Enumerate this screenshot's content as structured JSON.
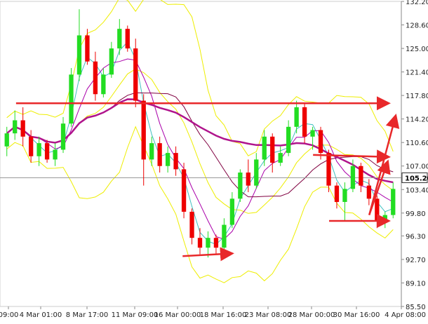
{
  "chart_data": {
    "type": "candlestick",
    "ylim": [
      85.5,
      132.2
    ],
    "y_ticks": [
      "132.20",
      "128.60",
      "125.00",
      "121.40",
      "117.80",
      "114.20",
      "110.60",
      "107.00",
      "103.40",
      "99.80",
      "96.30",
      "92.70",
      "89.10",
      "85.50"
    ],
    "current_price": "105.20",
    "x_ticks": [
      "09:00",
      "4 Mar 01:00",
      "8 Mar 17:00",
      "11 Mar 09:00",
      "16 Mar 00:00",
      "18 Mar 16:00",
      "23 Mar 08:00",
      "28 Mar 00:00",
      "30 Mar 16:00",
      "4 Apr 08:00"
    ],
    "colors": {
      "bull": "#22dd22",
      "bear": "#ee0000",
      "bollinger": "#eeee00",
      "ma_fast": "#40c0c0",
      "ma_mid": "#aa00aa",
      "ma_slow": "#800040",
      "ma_long": "#b0148c",
      "arrow": "#e8282a",
      "price_line": "#999999"
    },
    "candles": [
      [
        110.0,
        113.0,
        108.5,
        112.0
      ],
      [
        112.0,
        115.5,
        111.0,
        114.0
      ],
      [
        114.0,
        116.0,
        110.0,
        111.5
      ],
      [
        111.5,
        112.5,
        107.5,
        108.5
      ],
      [
        108.5,
        111.5,
        107.0,
        110.5
      ],
      [
        110.5,
        111.0,
        107.5,
        108.0
      ],
      [
        108.0,
        110.5,
        107.0,
        109.5
      ],
      [
        109.5,
        114.5,
        109.0,
        113.5
      ],
      [
        113.5,
        122.0,
        113.0,
        121.0
      ],
      [
        121.0,
        131.0,
        120.0,
        127.0
      ],
      [
        127.0,
        128.0,
        122.5,
        123.0
      ],
      [
        123.0,
        124.5,
        117.0,
        118.0
      ],
      [
        118.0,
        122.0,
        117.5,
        121.0
      ],
      [
        121.0,
        126.0,
        120.5,
        125.0
      ],
      [
        125.0,
        129.5,
        124.0,
        128.0
      ],
      [
        128.0,
        128.5,
        124.5,
        125.0
      ],
      [
        125.0,
        126.5,
        116.0,
        117.0
      ],
      [
        117.0,
        118.0,
        104.0,
        108.0
      ],
      [
        108.0,
        111.5,
        107.0,
        110.5
      ],
      [
        110.5,
        111.5,
        106.0,
        107.0
      ],
      [
        107.0,
        110.0,
        106.0,
        109.0
      ],
      [
        109.0,
        110.0,
        105.5,
        106.5
      ],
      [
        106.5,
        107.5,
        99.0,
        100.0
      ],
      [
        100.0,
        100.5,
        95.0,
        96.0
      ],
      [
        96.0,
        97.5,
        93.5,
        94.5
      ],
      [
        94.5,
        97.0,
        93.0,
        96.0
      ],
      [
        96.0,
        96.5,
        93.5,
        94.5
      ],
      [
        94.5,
        99.0,
        94.0,
        98.0
      ],
      [
        98.0,
        103.0,
        97.5,
        102.0
      ],
      [
        102.0,
        106.5,
        101.5,
        106.0
      ],
      [
        106.0,
        108.0,
        103.0,
        104.0
      ],
      [
        104.0,
        109.0,
        103.5,
        108.0
      ],
      [
        108.0,
        112.5,
        107.0,
        111.5
      ],
      [
        111.5,
        112.0,
        106.0,
        107.5
      ],
      [
        107.5,
        110.0,
        107.0,
        109.0
      ],
      [
        109.0,
        114.0,
        108.5,
        113.0
      ],
      [
        113.0,
        117.0,
        112.0,
        116.0
      ],
      [
        116.0,
        116.5,
        110.5,
        111.5
      ],
      [
        111.5,
        113.0,
        109.5,
        112.5
      ],
      [
        112.5,
        113.0,
        108.0,
        109.0
      ],
      [
        109.0,
        109.5,
        103.0,
        104.0
      ],
      [
        104.0,
        104.5,
        100.5,
        101.5
      ],
      [
        101.5,
        104.5,
        98.5,
        103.5
      ],
      [
        103.5,
        108.0,
        103.0,
        107.0
      ],
      [
        107.0,
        107.5,
        103.0,
        104.0
      ],
      [
        104.0,
        105.0,
        101.0,
        102.0
      ],
      [
        102.0,
        102.5,
        97.5,
        98.5
      ],
      [
        98.5,
        100.0,
        97.5,
        99.5
      ],
      [
        99.5,
        104.5,
        99.0,
        103.5
      ]
    ],
    "levels": [
      116.5,
      108.5,
      105.2
    ],
    "arrows": [
      {
        "from": [
          0.455,
          93.2
        ],
        "to": [
          0.575,
          93.6
        ]
      },
      {
        "from": [
          0.04,
          116.6
        ],
        "to": [
          0.965,
          116.6
        ]
      },
      {
        "from": [
          0.78,
          108.7
        ],
        "to": [
          0.965,
          108.4
        ]
      },
      {
        "from": [
          0.82,
          98.6
        ],
        "to": [
          0.965,
          98.6
        ]
      },
      {
        "from": [
          0.92,
          99.5
        ],
        "to": [
          0.965,
          107.5
        ]
      },
      {
        "from": [
          0.92,
          99.5
        ],
        "to": [
          0.985,
          114.5
        ]
      }
    ]
  }
}
